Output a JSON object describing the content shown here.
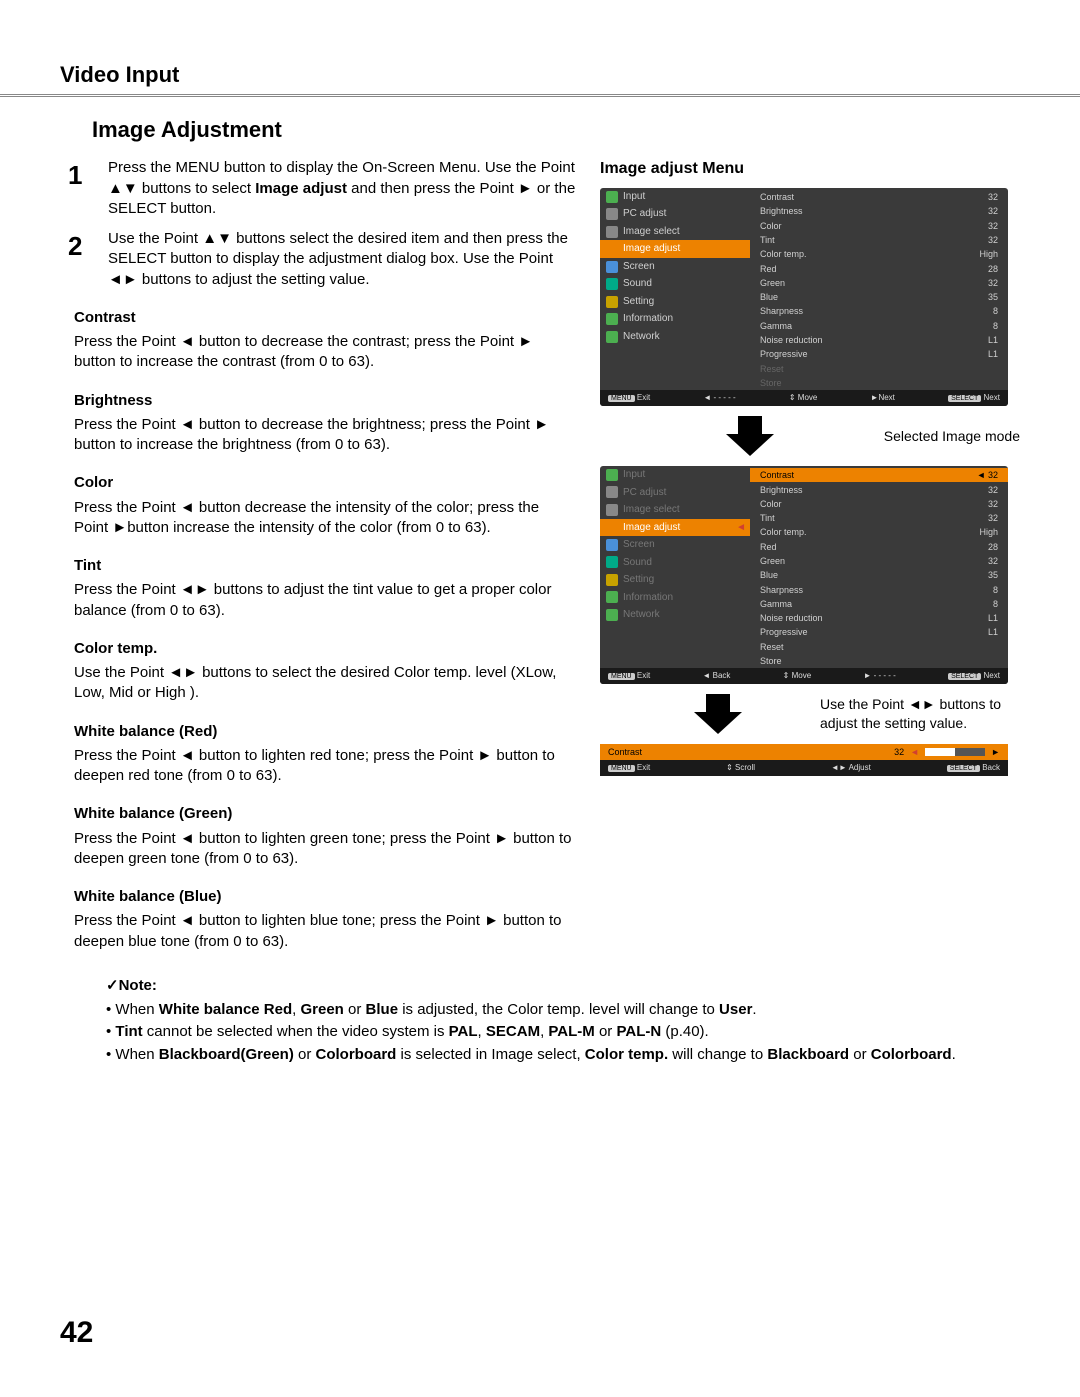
{
  "section": "Video Input",
  "title": "Image Adjustment",
  "page_number": "42",
  "steps": [
    {
      "num": "1",
      "html": "Press the MENU button to display the On-Screen Menu. Use the Point ▲▼ buttons to select <b>Image adjust</b> and then press the Point ► or the SELECT button."
    },
    {
      "num": "2",
      "html": "Use the Point ▲▼ buttons select the desired item and then press the SELECT button to display the adjustment dialog box. Use the Point ◄► buttons to adjust the setting value."
    }
  ],
  "items": [
    {
      "h": "Contrast",
      "p": "Press the Point ◄ button to decrease the contrast; press the Point ► button to increase the contrast (from 0 to 63)."
    },
    {
      "h": "Brightness",
      "p": "Press the Point ◄ button to decrease the brightness; press the Point ► button to increase the brightness (from 0 to 63)."
    },
    {
      "h": "Color",
      "p": "Press the Point ◄ button decrease the intensity of the color; press the Point ►button increase the intensity of the color (from 0 to 63)."
    },
    {
      "h": "Tint",
      "p": "Press the Point ◄► buttons to adjust the tint value to get a proper color balance (from 0 to 63)."
    },
    {
      "h": "Color temp.",
      "p": "Use the Point ◄► buttons to select the desired Color temp. level (XLow, Low, Mid or High )."
    },
    {
      "h": "White balance (Red)",
      "p": "Press the Point ◄ button to lighten red tone; press the Point ► button to deepen red tone (from 0 to 63)."
    },
    {
      "h": "White balance (Green)",
      "p": "Press the Point ◄ button to lighten green tone; press the Point ► button to deepen green tone (from 0 to 63)."
    },
    {
      "h": "White balance (Blue)",
      "p": "Press the Point ◄ button to lighten blue tone; press the Point ► button to deepen blue tone (from 0 to 63)."
    }
  ],
  "right_title": "Image adjust Menu",
  "menu_left": [
    {
      "label": "Input",
      "icon": "ic-g"
    },
    {
      "label": "PC adjust",
      "icon": ""
    },
    {
      "label": "Image select",
      "icon": ""
    },
    {
      "label": "Image adjust",
      "icon": "ic-o",
      "sel": true,
      "arrow": "►"
    },
    {
      "label": "Screen",
      "icon": "ic-b"
    },
    {
      "label": "Sound",
      "icon": "ic-t"
    },
    {
      "label": "Setting",
      "icon": "ic-y"
    },
    {
      "label": "Information",
      "icon": "ic-g"
    },
    {
      "label": "Network",
      "icon": "ic-g"
    }
  ],
  "menu_kv": [
    {
      "k": "Contrast",
      "v": "32"
    },
    {
      "k": "Brightness",
      "v": "32"
    },
    {
      "k": "Color",
      "v": "32"
    },
    {
      "k": "Tint",
      "v": "32"
    },
    {
      "k": "Color temp.",
      "v": "High"
    },
    {
      "k": "Red",
      "v": "28"
    },
    {
      "k": "Green",
      "v": "32"
    },
    {
      "k": "Blue",
      "v": "35"
    },
    {
      "k": "Sharpness",
      "v": "8"
    },
    {
      "k": "Gamma",
      "v": "8"
    },
    {
      "k": "Noise reduction",
      "v": "L1"
    },
    {
      "k": "Progressive",
      "v": "L1"
    },
    {
      "k": "Reset",
      "v": "",
      "dim": true
    },
    {
      "k": "Store",
      "v": "",
      "dim": true
    }
  ],
  "foot1": {
    "a": "MENU",
    "at": "Exit",
    "b": "◄ - - - - -",
    "c": "⇕ Move",
    "d": "►Next",
    "e": "SELECT",
    "et": "Next"
  },
  "caption1": "Selected Image mode",
  "menu2_left_dim": [
    "Input",
    "PC adjust",
    "Image select"
  ],
  "menu2_left_active": {
    "label": "Image adjust",
    "arrow": "◄"
  },
  "menu2_left_dim2": [
    "Screen",
    "Sound",
    "Setting",
    "Information",
    "Network"
  ],
  "menu2_kv": [
    {
      "k": "Contrast",
      "v": "32",
      "sel": true
    },
    {
      "k": "Brightness",
      "v": "32"
    },
    {
      "k": "Color",
      "v": "32"
    },
    {
      "k": "Tint",
      "v": "32"
    },
    {
      "k": "Color temp.",
      "v": "High"
    },
    {
      "k": "Red",
      "v": "28"
    },
    {
      "k": "Green",
      "v": "32"
    },
    {
      "k": "Blue",
      "v": "35"
    },
    {
      "k": "Sharpness",
      "v": "8"
    },
    {
      "k": "Gamma",
      "v": "8"
    },
    {
      "k": "Noise reduction",
      "v": "L1"
    },
    {
      "k": "Progressive",
      "v": "L1"
    },
    {
      "k": "Reset",
      "v": ""
    },
    {
      "k": "Store",
      "v": ""
    }
  ],
  "foot2": {
    "a": "MENU",
    "at": "Exit",
    "b": "◄ Back",
    "c": "⇕ Move",
    "d": "► - - - - -",
    "e": "SELECT",
    "et": "Next"
  },
  "caption2": "Use the Point ◄► buttons to adjust the setting value.",
  "adjust": {
    "label": "Contrast",
    "val": "32"
  },
  "foot3": {
    "a": "MENU",
    "at": "Exit",
    "b": "⇕ Scroll",
    "c": "◄► Adjust",
    "d": "SELECT",
    "dt": "Back"
  },
  "note_title": "✓Note:",
  "notes": [
    "When <b>White balance Red</b>, <b>Green</b> or <b>Blue</b> is adjusted, the Color temp. level will change to <b>User</b>.",
    "<b>Tint</b> cannot be selected when the video system is <b>PAL</b>, <b>SECAM</b>, <b>PAL-M</b> or <b>PAL-N</b> (p.40).",
    "When <b>Blackboard(Green)</b> or <b>Colorboard</b> is selected in Image select, <b>Color temp.</b> will change to <b>Blackboard</b> or <b>Colorboard</b>."
  ]
}
